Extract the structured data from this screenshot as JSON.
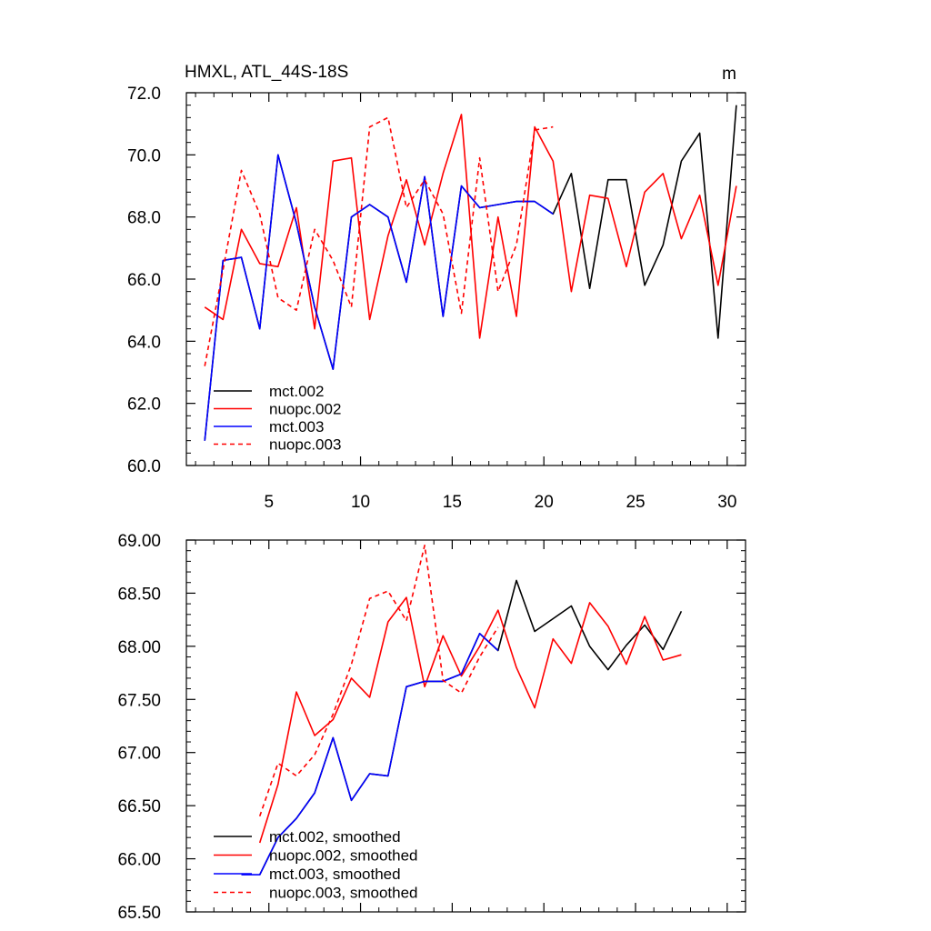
{
  "chart_data": [
    {
      "type": "line",
      "title": "HMXL, ATL_44S-18S",
      "units": "m",
      "xlabel": "",
      "ylabel": "",
      "xlim": [
        0.5,
        31
      ],
      "ylim": [
        60.0,
        72.0
      ],
      "xticks": [
        5,
        10,
        15,
        20,
        25,
        30
      ],
      "xtick_labels": [
        "5",
        "10",
        "15",
        "20",
        "25",
        "30"
      ],
      "yticks": [
        60,
        62,
        64,
        66,
        68,
        70,
        72
      ],
      "ytick_labels": [
        "60.0",
        "62.0",
        "64.0",
        "66.0",
        "68.0",
        "70.0",
        "72.0"
      ],
      "legend_position": "bottom-left",
      "series": [
        {
          "name": "mct.002",
          "color": "#000000",
          "dash": "solid",
          "x": [
            1.5,
            2.5,
            3.5,
            4.5,
            5.5,
            6.5,
            7.5,
            8.5,
            9.5,
            10.5,
            11.5,
            12.5,
            13.5,
            14.5,
            15.5,
            16.5,
            17.5,
            18.5,
            19.5,
            20.5,
            21.5,
            22.5,
            23.5,
            24.5,
            25.5,
            26.5,
            27.5,
            28.5,
            29.5,
            30.5
          ],
          "values": [
            60.8,
            66.6,
            66.7,
            64.4,
            70.0,
            67.8,
            65.1,
            63.1,
            68.0,
            68.4,
            68.0,
            65.9,
            69.3,
            64.8,
            69.0,
            68.3,
            68.4,
            68.5,
            68.5,
            68.1,
            69.4,
            65.7,
            69.2,
            69.2,
            65.8,
            67.1,
            69.8,
            70.7,
            64.1,
            71.6
          ]
        },
        {
          "name": "nuopc.002",
          "color": "#ff0000",
          "dash": "solid",
          "x": [
            1.5,
            2.5,
            3.5,
            4.5,
            5.5,
            6.5,
            7.5,
            8.5,
            9.5,
            10.5,
            11.5,
            12.5,
            13.5,
            14.5,
            15.5,
            16.5,
            17.5,
            18.5,
            19.5,
            20.5,
            21.5,
            22.5,
            23.5,
            24.5,
            25.5,
            26.5,
            27.5,
            28.5,
            29.5,
            30.5
          ],
          "values": [
            65.1,
            64.7,
            67.6,
            66.5,
            66.4,
            68.3,
            64.4,
            69.8,
            69.9,
            64.7,
            67.4,
            69.2,
            67.1,
            69.4,
            71.3,
            64.1,
            68.0,
            64.8,
            70.9,
            69.8,
            65.6,
            68.7,
            68.6,
            66.4,
            68.8,
            69.4,
            67.3,
            68.7,
            65.8,
            69.0
          ]
        },
        {
          "name": "mct.003",
          "color": "#0000ff",
          "dash": "solid",
          "x": [
            1.5,
            2.5,
            3.5,
            4.5,
            5.5,
            6.5,
            7.5,
            8.5,
            9.5,
            10.5,
            11.5,
            12.5,
            13.5,
            14.5,
            15.5,
            16.5,
            17.5,
            18.5,
            19.5,
            20.5
          ],
          "values": [
            60.8,
            66.6,
            66.7,
            64.4,
            70.0,
            67.8,
            65.1,
            63.1,
            68.0,
            68.4,
            68.0,
            65.9,
            69.3,
            64.8,
            69.0,
            68.3,
            68.4,
            68.5,
            68.5,
            68.1
          ]
        },
        {
          "name": "nuopc.003",
          "color": "#ff0000",
          "dash": "dashed",
          "x": [
            1.5,
            2.5,
            3.5,
            4.5,
            5.5,
            6.5,
            7.5,
            8.5,
            9.5,
            10.5,
            11.5,
            12.5,
            13.5,
            14.5,
            15.5,
            16.5,
            17.5,
            18.5,
            19.5,
            20.5
          ],
          "values": [
            63.2,
            66.3,
            69.5,
            68.1,
            65.4,
            65.0,
            67.6,
            66.6,
            65.1,
            70.9,
            71.2,
            68.3,
            69.2,
            68.1,
            64.9,
            69.9,
            65.6,
            67.1,
            70.8,
            70.9
          ]
        }
      ]
    },
    {
      "type": "line",
      "title": "",
      "xlabel": "",
      "ylabel": "",
      "xlim": [
        0.5,
        31
      ],
      "ylim": [
        65.5,
        69.0
      ],
      "xticks": [
        5,
        10,
        15,
        20,
        25,
        30
      ],
      "xtick_labels": [],
      "yticks": [
        65.5,
        66.0,
        66.5,
        67.0,
        67.5,
        68.0,
        68.5,
        69.0
      ],
      "ytick_labels": [
        "65.50",
        "66.00",
        "66.50",
        "67.00",
        "67.50",
        "68.00",
        "68.50",
        "69.00"
      ],
      "legend_position": "bottom-left",
      "series": [
        {
          "name": "mct.002, smoothed",
          "color": "#000000",
          "dash": "solid",
          "x": [
            4.5,
            5.5,
            6.5,
            7.5,
            8.5,
            9.5,
            10.5,
            11.5,
            12.5,
            13.5,
            14.5,
            15.5,
            16.5,
            17.5,
            18.5,
            19.5,
            20.5,
            21.5,
            22.5,
            23.5,
            24.5,
            25.5,
            26.5,
            27.5
          ],
          "values": [
            65.85,
            66.2,
            66.38,
            66.62,
            67.14,
            66.55,
            66.8,
            66.78,
            67.62,
            67.67,
            67.67,
            67.74,
            68.12,
            67.96,
            68.62,
            68.14,
            68.26,
            68.38,
            68.0,
            67.78,
            68.01,
            68.2,
            67.97,
            68.33
          ]
        },
        {
          "name": "nuopc.002, smoothed",
          "color": "#ff0000",
          "dash": "solid",
          "x": [
            4.5,
            5.5,
            6.5,
            7.5,
            8.5,
            9.5,
            10.5,
            11.5,
            12.5,
            13.5,
            14.5,
            15.5,
            16.5,
            17.5,
            18.5,
            19.5,
            20.5,
            21.5,
            22.5,
            23.5,
            24.5,
            25.5,
            26.5,
            27.5
          ],
          "values": [
            66.15,
            66.7,
            67.57,
            67.16,
            67.31,
            67.7,
            67.52,
            68.23,
            68.46,
            67.62,
            68.1,
            67.72,
            68.0,
            68.34,
            67.8,
            67.42,
            68.07,
            67.84,
            68.41,
            68.19,
            67.83,
            68.28,
            67.87,
            67.92
          ]
        },
        {
          "name": "mct.003, smoothed",
          "color": "#0000ff",
          "dash": "solid",
          "x": [
            3.5,
            4.5,
            5.5,
            6.5,
            7.5,
            8.5,
            9.5,
            10.5,
            11.5,
            12.5,
            13.5,
            14.5,
            15.5,
            16.5,
            17.5
          ],
          "values": [
            65.85,
            65.85,
            66.2,
            66.38,
            66.62,
            67.14,
            66.55,
            66.8,
            66.78,
            67.62,
            67.67,
            67.67,
            67.74,
            68.12,
            67.96
          ]
        },
        {
          "name": "nuopc.003, smoothed",
          "color": "#ff0000",
          "dash": "dashed",
          "x": [
            4.5,
            5.5,
            6.5,
            7.5,
            8.5,
            9.5,
            10.5,
            11.5,
            12.5,
            13.5,
            14.5,
            15.5,
            16.5,
            17.5
          ],
          "values": [
            66.4,
            66.9,
            66.78,
            66.98,
            67.36,
            67.83,
            68.45,
            68.52,
            68.24,
            68.95,
            67.68,
            67.56,
            67.9,
            68.18
          ]
        }
      ]
    }
  ]
}
